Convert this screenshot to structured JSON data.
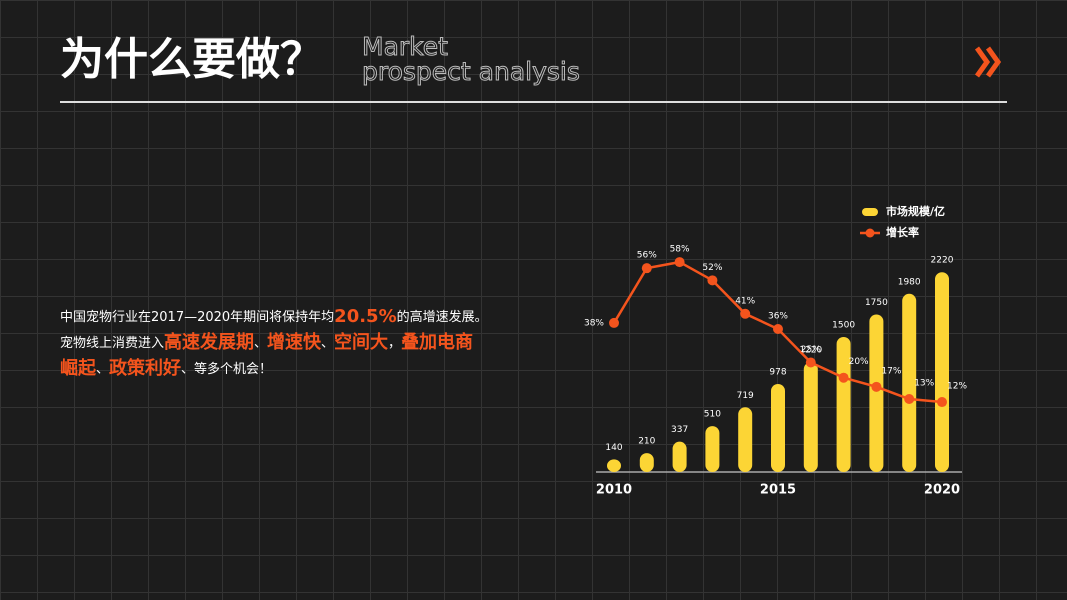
{
  "header": {
    "title": "为什么要做？",
    "subtitle": [
      "Market",
      "prospect analysis"
    ]
  },
  "paragraph": [
    [
      {
        "text": "中国宠物行业在2017—2020年期间将保持年均",
        "highlight": false
      },
      {
        "text": "20.5%",
        "highlight": true
      },
      {
        "text": "的高增速发展。",
        "highlight": false
      }
    ],
    [
      {
        "text": "宠物线上消费进入",
        "highlight": false
      },
      {
        "text": "高速发展期",
        "highlight": true
      },
      {
        "text": "、",
        "highlight": false
      },
      {
        "text": "增速快",
        "highlight": true
      },
      {
        "text": "、",
        "highlight": false
      },
      {
        "text": "空间大",
        "highlight": true
      },
      {
        "text": "，",
        "highlight": false
      },
      {
        "text": "叠加电商",
        "highlight": true
      }
    ],
    [
      {
        "text": "崛起",
        "highlight": true
      },
      {
        "text": "、",
        "highlight": false
      },
      {
        "text": "政策利好",
        "highlight": true
      },
      {
        "text": "、等多个机会！",
        "highlight": false
      }
    ]
  ],
  "chart_data": {
    "type": "combo",
    "categories": [
      "2010",
      null,
      null,
      null,
      null,
      "2015",
      null,
      null,
      null,
      null,
      "2020"
    ],
    "series": [
      {
        "name": "市场规模/亿",
        "type": "bar",
        "color": "#fcd535",
        "values": [
          140,
          210,
          337,
          510,
          719,
          978,
          1220,
          1500,
          1750,
          1980,
          2220
        ]
      },
      {
        "name": "增长率",
        "type": "line",
        "axis": "y2",
        "color": "#f4541d",
        "values": [
          38,
          56,
          58,
          52,
          41,
          36,
          25,
          20,
          17,
          13,
          12
        ],
        "value_labels": [
          "38%",
          "56%",
          "58%",
          "52%",
          "41%",
          "36%",
          "25%",
          "20%",
          "17%",
          "13%",
          "12%"
        ]
      }
    ],
    "ylim": [
      0,
      2400
    ],
    "y2lim": [
      -11,
      60
    ],
    "legend": "top-right"
  }
}
